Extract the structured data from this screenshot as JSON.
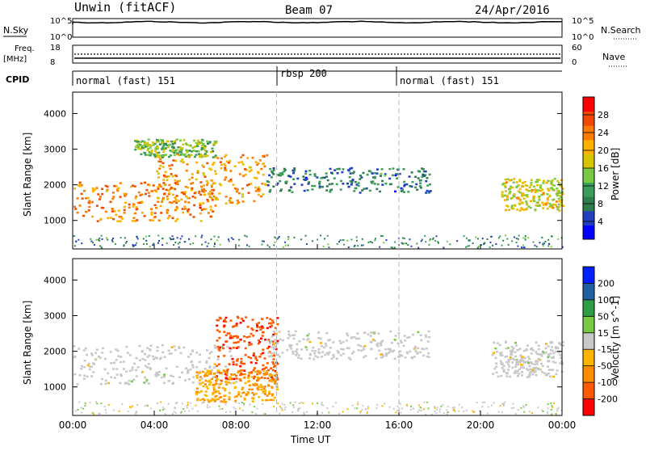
{
  "header": {
    "station": "Unwin (fitACF)",
    "beam": "Beam 07",
    "date": "24/Apr/2016"
  },
  "left_labels": {
    "nsky": "N.Sky",
    "freq_line1": "Freq.",
    "freq_line2": "[MHz]",
    "cpid": "CPID"
  },
  "right_labels": {
    "nsearch": "N.Search",
    "nave": "Nave"
  },
  "noise_panel": {
    "left_ticks": [
      "10^5",
      "10^0"
    ],
    "right_ticks": [
      "10^5",
      "10^0"
    ]
  },
  "freq_panel": {
    "left_ticks": [
      "18",
      "8"
    ],
    "right_ticks": [
      "60",
      "0"
    ]
  },
  "cpid_segments": [
    {
      "label": "normal (fast) 151",
      "start_hour": 0
    },
    {
      "label": "rbsp 200",
      "start_hour": 10
    },
    {
      "label": "normal (fast) 151",
      "start_hour": 16
    }
  ],
  "chart_data": [
    {
      "type": "heatmap",
      "panel": "power",
      "ylabel": "Slant Range [km]",
      "xlabel": "",
      "ylim": [
        200,
        4600
      ],
      "yticks": [
        "1000",
        "2000",
        "3000",
        "4000"
      ],
      "ytick_values": [
        1000,
        2000,
        3000,
        4000
      ],
      "colorbar": {
        "label": "Power [dB]",
        "ticks": [
          "28",
          "24",
          "20",
          "16",
          "12",
          "8",
          "4"
        ],
        "range": [
          0,
          32
        ],
        "colors": [
          "#0000ff",
          "#2040c0",
          "#2e7d4f",
          "#3a9e5a",
          "#7ac943",
          "#d6c400",
          "#ffb000",
          "#ff7a00",
          "#f04a00",
          "#ff0000"
        ]
      },
      "regions": [
        {
          "desc": "E/F echoes early",
          "t_start": 0.0,
          "t_end": 7.0,
          "r_start": 1000,
          "r_end": 2100,
          "mean_db": 24
        },
        {
          "desc": "rising echo",
          "t_start": 4.0,
          "t_end": 9.5,
          "r_start": 1500,
          "r_end": 2900,
          "mean_db": 22
        },
        {
          "desc": "top echo",
          "t_start": 3.0,
          "t_end": 7.0,
          "r_start": 2800,
          "r_end": 3300,
          "mean_db": 14
        },
        {
          "desc": "arc",
          "t_start": 9.5,
          "t_end": 17.5,
          "r_start": 1800,
          "r_end": 2500,
          "mean_db": 8
        },
        {
          "desc": "late echo",
          "t_start": 21.0,
          "t_end": 24.0,
          "r_start": 1300,
          "r_end": 2200,
          "mean_db": 18
        }
      ]
    },
    {
      "type": "heatmap",
      "panel": "velocity",
      "ylabel": "Slant Range [km]",
      "xlabel": "Time UT",
      "ylim": [
        200,
        4600
      ],
      "yticks": [
        "1000",
        "2000",
        "3000",
        "4000"
      ],
      "ytick_values": [
        1000,
        2000,
        3000,
        4000
      ],
      "xticks": [
        "00:00",
        "04:00",
        "08:00",
        "12:00",
        "16:00",
        "20:00",
        "00:00"
      ],
      "xtick_values": [
        0,
        4,
        8,
        12,
        16,
        20,
        24
      ],
      "colorbar": {
        "label": "Velocity [m s^-1]",
        "ticks": [
          "200",
          "100",
          "50",
          "15",
          "-15",
          "-50",
          "-100",
          "-200"
        ],
        "range": [
          -250,
          250
        ],
        "colors": [
          "#ff0000",
          "#ff5a00",
          "#ff8c00",
          "#ffb400",
          "#c8c8c8",
          "#7ac943",
          "#2e9e44",
          "#2060a0",
          "#0020ff"
        ]
      },
      "regions": [
        {
          "desc": "ground scatter",
          "t_start": 0.0,
          "t_end": 8.0,
          "r_start": 1100,
          "r_end": 2200,
          "mean_v": 0
        },
        {
          "desc": "red near 09",
          "t_start": 7.0,
          "t_end": 10.0,
          "r_start": 1200,
          "r_end": 3000,
          "mean_v": -180
        },
        {
          "desc": "orange blob",
          "t_start": 6.0,
          "t_end": 10.0,
          "r_start": 600,
          "r_end": 1500,
          "mean_v": -80
        },
        {
          "desc": "arc",
          "t_start": 9.5,
          "t_end": 17.5,
          "r_start": 1800,
          "r_end": 2600,
          "mean_v": 0
        },
        {
          "desc": "late",
          "t_start": 20.5,
          "t_end": 24.0,
          "r_start": 1300,
          "r_end": 2300,
          "mean_v": 0
        }
      ]
    }
  ]
}
